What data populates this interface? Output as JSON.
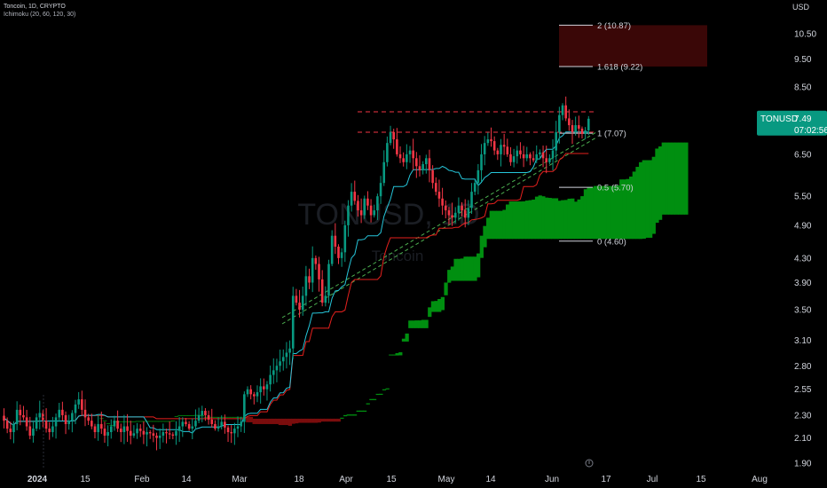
{
  "header": {
    "symbol_line": "Toncoin, 1D, CRYPTO",
    "indicator_line": "Ichimoku (20, 60, 120, 30)"
  },
  "currency_label": "USD",
  "price_tag": {
    "symbol": "TONUSD",
    "price": "7.49",
    "countdown": "07:02:56",
    "color": "#089981"
  },
  "watermark": {
    "symbol": "TONUSD, 1D",
    "name": "Toncoin"
  },
  "colors": {
    "up": "#089981",
    "down": "#f23645",
    "conversion": "#26c6da",
    "base": "#e5201d",
    "cloud_bull": "#008f10",
    "cloud_bear": "#7a0d0d",
    "fib_zone": "#3a0707",
    "resistance": "#f23645",
    "support": "#4caf50"
  },
  "chart_data": {
    "type": "candlestick",
    "title": "Toncoin, 1D, CRYPTO",
    "ylabel": "USD",
    "y_scale": "log",
    "ylim": [
      1.84,
      12.3
    ],
    "x_tick_labels": [
      "2024",
      "15",
      "Feb",
      "14",
      "Mar",
      "18",
      "Apr",
      "15",
      "May",
      "14",
      "Jun",
      "17",
      "Jul",
      "15",
      "Aug"
    ],
    "y_tick_labels": [
      "10.50",
      "9.50",
      "8.50",
      "7.49",
      "6.50",
      "5.50",
      "4.90",
      "4.30",
      "3.90",
      "3.50",
      "3.10",
      "2.80",
      "2.55",
      "2.30",
      "2.10",
      "1.90"
    ],
    "last_price": 7.49,
    "candles_close": [
      2.25,
      2.18,
      2.15,
      2.22,
      2.35,
      2.3,
      2.28,
      2.2,
      2.12,
      2.18,
      2.28,
      2.32,
      2.25,
      2.18,
      2.15,
      2.2,
      2.28,
      2.35,
      2.3,
      2.22,
      2.25,
      2.32,
      2.4,
      2.45,
      2.35,
      2.28,
      2.25,
      2.2,
      2.15,
      2.22,
      2.18,
      2.12,
      2.15,
      2.2,
      2.25,
      2.18,
      2.15,
      2.2,
      2.16,
      2.12,
      2.14,
      2.18,
      2.16,
      2.13,
      2.15,
      2.14,
      2.12,
      2.1,
      2.12,
      2.15,
      2.14,
      2.13,
      2.12,
      2.16,
      2.2,
      2.24,
      2.22,
      2.18,
      2.2,
      2.25,
      2.3,
      2.34,
      2.3,
      2.26,
      2.22,
      2.18,
      2.2,
      2.24,
      2.19,
      2.15,
      2.14,
      2.18,
      2.2,
      2.24,
      2.5,
      2.55,
      2.5,
      2.48,
      2.52,
      2.58,
      2.55,
      2.6,
      2.7,
      2.75,
      2.8,
      2.85,
      2.9,
      2.95,
      3.0,
      3.7,
      3.6,
      3.5,
      3.7,
      4.0,
      3.9,
      4.3,
      4.2,
      3.95,
      3.6,
      3.7,
      4.2,
      4.7,
      4.5,
      4.3,
      4.4,
      4.9,
      5.3,
      5.6,
      5.4,
      5.2,
      5.1,
      5.45,
      5.3,
      5.1,
      5.2,
      5.5,
      5.8,
      6.3,
      6.8,
      7.1,
      6.9,
      6.5,
      6.4,
      6.3,
      6.5,
      6.6,
      6.4,
      6.2,
      6.1,
      6.25,
      6.4,
      6.1,
      5.8,
      5.6,
      5.45,
      5.3,
      5.2,
      5.1,
      5.05,
      5.15,
      5.3,
      5.2,
      5.05,
      5.25,
      5.6,
      5.8,
      6.1,
      6.5,
      6.8,
      6.9,
      6.85,
      6.6,
      6.5,
      6.75,
      6.7,
      6.5,
      6.3,
      6.45,
      6.6,
      6.5,
      6.4,
      6.5,
      6.4,
      6.35,
      6.5,
      6.55,
      6.4,
      6.3,
      6.4,
      6.6,
      7.1,
      7.6,
      7.9,
      7.5,
      7.3,
      7.1,
      7.3,
      7.2,
      7.05,
      7.15,
      7.49
    ],
    "fibonacci": [
      {
        "level": "2",
        "value": 10.87,
        "label": "2 (10.87)"
      },
      {
        "level": "1.618",
        "value": 9.22,
        "label": "1.618 (9.22)"
      },
      {
        "level": "1",
        "value": 7.07,
        "label": "1 (7.07)"
      },
      {
        "level": "0.5",
        "value": 5.7,
        "label": "0.5 (5.70)"
      },
      {
        "level": "0",
        "value": 4.6,
        "label": "0 (4.60)"
      }
    ],
    "resistance_lines": [
      7.7,
      7.1
    ],
    "support_trendlines": 2,
    "series": [
      {
        "name": "Ichimoku Conversion Line (20)"
      },
      {
        "name": "Ichimoku Base Line (60)"
      },
      {
        "name": "Ichimoku Cloud (Senkou Span A / B)"
      }
    ]
  }
}
